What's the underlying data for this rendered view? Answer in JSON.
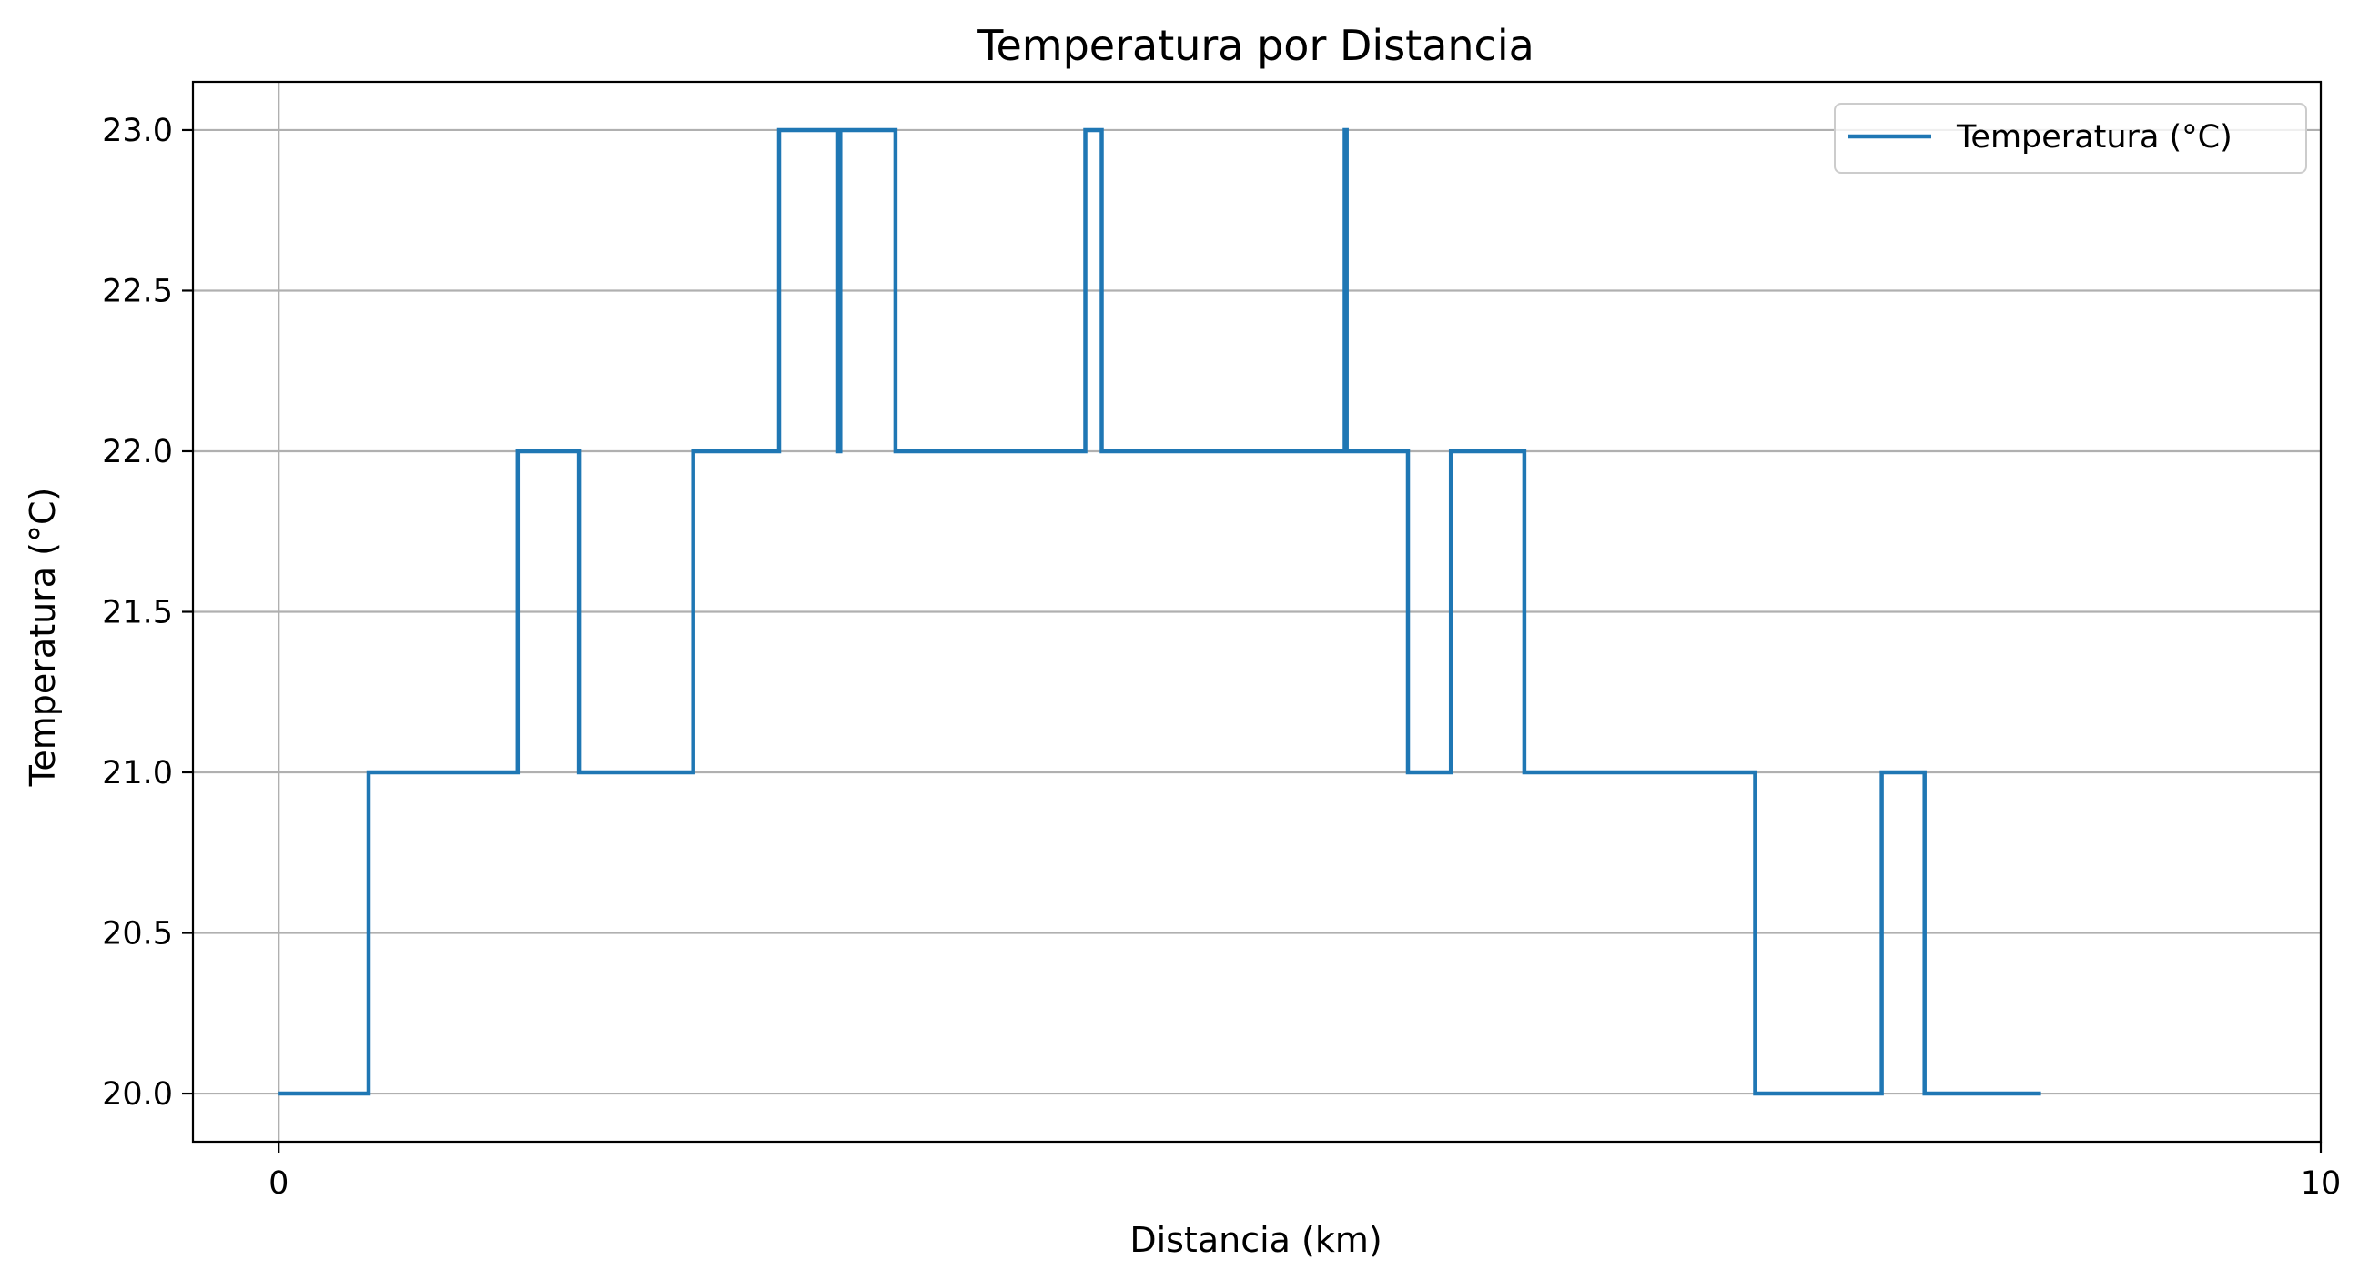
{
  "chart_data": {
    "type": "line",
    "title": "Temperatura por Distancia",
    "xlabel": "Distancia (km)",
    "ylabel": "Temperatura (°C)",
    "xlim": [
      -0.42,
      10.0
    ],
    "ylim": [
      19.85,
      23.15
    ],
    "x_ticks": [
      0,
      10
    ],
    "y_ticks": [
      20.0,
      20.5,
      21.0,
      21.5,
      22.0,
      22.5,
      23.0
    ],
    "x_tick_labels": [
      "0",
      "10"
    ],
    "y_tick_labels": [
      "20.0",
      "20.5",
      "21.0",
      "21.5",
      "22.0",
      "22.5",
      "23.0"
    ],
    "grid": "both",
    "legend_placement": "top-right",
    "series": [
      {
        "name": "Temperatura (°C)",
        "color": "#1f77b4",
        "x": [
          0.0,
          0.44,
          0.44,
          1.17,
          1.17,
          1.47,
          1.47,
          2.03,
          2.03,
          2.45,
          2.45,
          2.74,
          2.74,
          2.75,
          2.75,
          2.76,
          2.76,
          3.02,
          3.02,
          3.95,
          3.95,
          4.03,
          4.03,
          5.22,
          5.22,
          5.23,
          5.23,
          5.53,
          5.53,
          5.54,
          5.54,
          5.74,
          5.74,
          6.1,
          6.1,
          6.11,
          6.11,
          7.23,
          7.23,
          7.24,
          7.24,
          7.85,
          7.85,
          8.06,
          8.06,
          8.63
        ],
        "y": [
          20,
          20,
          21,
          21,
          22,
          22,
          21,
          21,
          22,
          22,
          23,
          23,
          22,
          22,
          23,
          23,
          23,
          23,
          22,
          22,
          23,
          23,
          22,
          22,
          23,
          23,
          22,
          22,
          21,
          21,
          21,
          21,
          22,
          22,
          21,
          21,
          21,
          21,
          20,
          20,
          20,
          20,
          21,
          21,
          20,
          20
        ]
      }
    ]
  }
}
